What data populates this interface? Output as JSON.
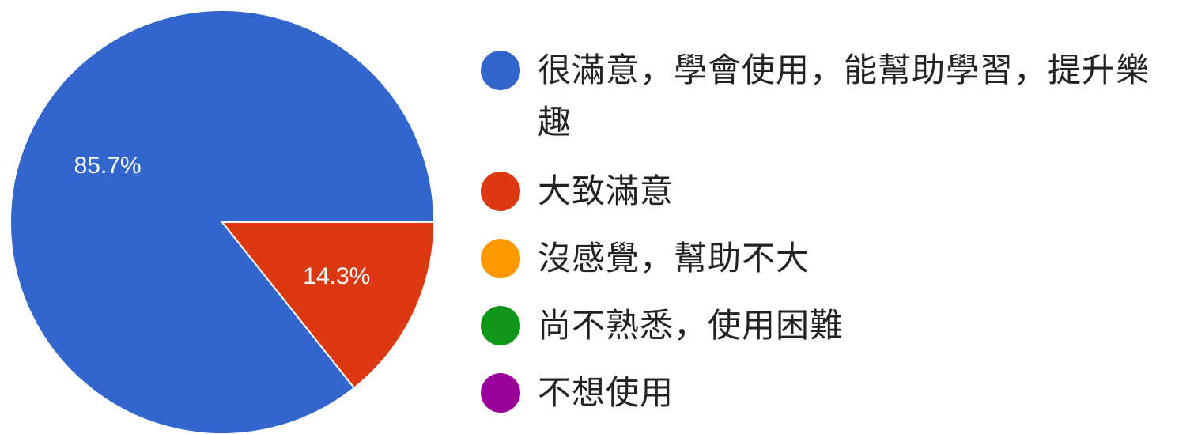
{
  "chart_data": {
    "type": "pie",
    "title": "",
    "slices": [
      {
        "label": "很滿意，學會使用，能幫助學習，提升樂趣",
        "value": 85.7,
        "display": "85.7%",
        "color": "#3366cc"
      },
      {
        "label": "大致滿意",
        "value": 14.3,
        "display": "14.3%",
        "color": "#dc3912"
      },
      {
        "label": "沒感覺，幫助不大",
        "value": 0,
        "display": "",
        "color": "#ff9900"
      },
      {
        "label": "尚不熟悉，使用困難",
        "value": 0,
        "display": "",
        "color": "#109618"
      },
      {
        "label": "不想使用",
        "value": 0,
        "display": "",
        "color": "#990099"
      }
    ],
    "legend_position": "right",
    "start_angle_deg": 0,
    "direction": "counterclockwise"
  },
  "legend": {
    "items": [
      {
        "label": "很滿意，學會使用，能幫助學習，提升樂趣",
        "color": "#3366cc"
      },
      {
        "label": "大致滿意",
        "color": "#dc3912"
      },
      {
        "label": "沒感覺，幫助不大",
        "color": "#ff9900"
      },
      {
        "label": "尚不熟悉，使用困難",
        "color": "#109618"
      },
      {
        "label": "不想使用",
        "color": "#990099"
      }
    ]
  }
}
